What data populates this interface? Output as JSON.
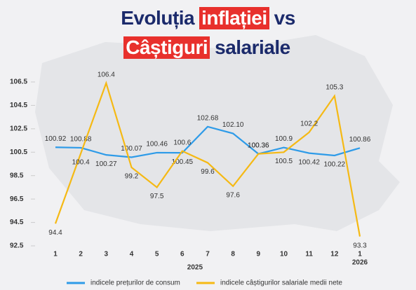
{
  "chart_data": {
    "type": "line",
    "title_line1": [
      "Evoluția",
      "inflației",
      "vs"
    ],
    "title_line2": [
      "Câștiguri",
      "salariale"
    ],
    "categories": [
      "1",
      "2",
      "3",
      "4",
      "5",
      "6",
      "7",
      "8",
      "9",
      "10",
      "11",
      "12",
      "1"
    ],
    "year_labels": [
      "2025",
      "2026"
    ],
    "ylim": [
      92.5,
      106.5
    ],
    "yticks": [
      92.5,
      94.5,
      96.5,
      98.5,
      100.5,
      102.5,
      104.5,
      106.5
    ],
    "series": [
      {
        "name": "indicele prețurilor de consum",
        "color": "#2e9be8",
        "values": [
          100.92,
          100.88,
          100.27,
          100.07,
          100.46,
          100.45,
          102.68,
          102.1,
          100.36,
          100.9,
          100.42,
          100.22,
          100.86
        ],
        "value_labels": [
          "100.92",
          "100.88",
          "100.27",
          "100.07",
          "100.46",
          "100.45",
          "102.68",
          "102.10",
          "100.36",
          "100.9",
          "100.42",
          "100.22",
          "100.86"
        ]
      },
      {
        "name": "indicele câștigurilor salariale medii nete",
        "color": "#f5b914",
        "values": [
          94.4,
          100.4,
          106.4,
          99.2,
          97.5,
          100.6,
          99.6,
          97.6,
          100.36,
          100.5,
          102.2,
          105.3,
          93.3
        ],
        "value_labels": [
          "94.4",
          "100.4",
          "106.4",
          "99.2",
          "97.5",
          "100.6",
          "99.6",
          "97.6",
          "100.36",
          "100.5",
          "102.2",
          "105.3",
          "93.3"
        ]
      }
    ]
  }
}
